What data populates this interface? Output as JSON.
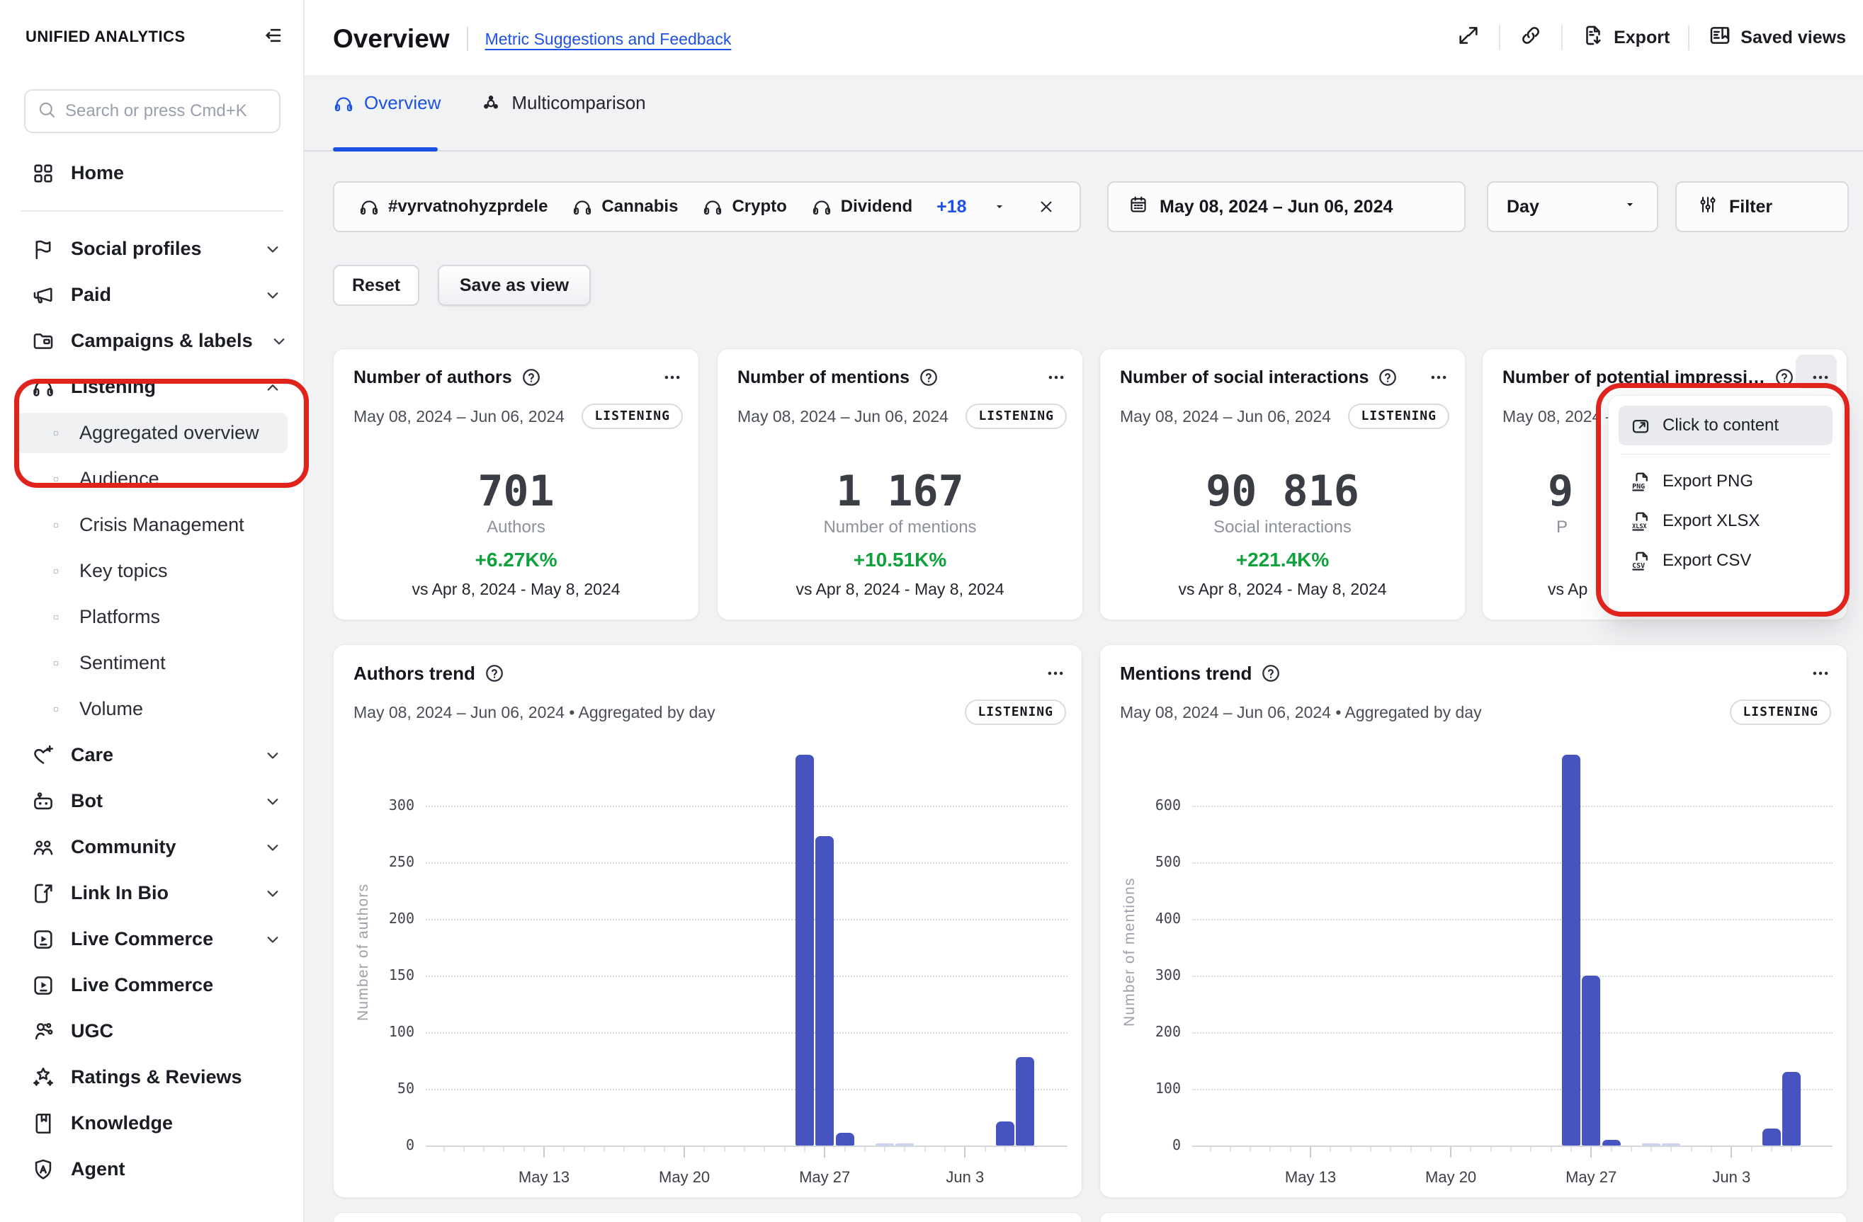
{
  "brand": {
    "name": "UNIFIED ANALYTICS"
  },
  "sidebar": {
    "search": {
      "placeholder": "Search or press Cmd+K"
    },
    "items": [
      {
        "label": "Home",
        "icon": "grid"
      },
      {
        "divider": true
      },
      {
        "label": "Social profiles",
        "icon": "flag",
        "chevron": "down"
      },
      {
        "label": "Paid",
        "icon": "megaphone",
        "chevron": "down"
      },
      {
        "label": "Campaigns & labels",
        "icon": "folder",
        "chevron": "down"
      },
      {
        "label": "Listening",
        "icon": "headphones",
        "chevron": "up"
      },
      {
        "label": "Aggregated overview",
        "child": true,
        "active": true
      },
      {
        "label": "Audience",
        "child": true
      },
      {
        "label": "Crisis Management",
        "child": true
      },
      {
        "label": "Key topics",
        "child": true
      },
      {
        "label": "Platforms",
        "child": true
      },
      {
        "label": "Sentiment",
        "child": true
      },
      {
        "label": "Volume",
        "child": true
      },
      {
        "label": "Care",
        "icon": "heart-plus",
        "chevron": "down"
      },
      {
        "label": "Bot",
        "icon": "bot",
        "chevron": "down"
      },
      {
        "label": "Community",
        "icon": "community",
        "chevron": "down"
      },
      {
        "label": "Link In Bio",
        "icon": "link-in-bio",
        "chevron": "down"
      },
      {
        "label": "Live Commerce",
        "icon": "play-square",
        "chevron": "down"
      },
      {
        "label": "Live Commerce",
        "icon": "play-square"
      },
      {
        "label": "UGC",
        "icon": "ugc"
      },
      {
        "label": "Ratings & Reviews",
        "icon": "stars"
      },
      {
        "label": "Knowledge",
        "icon": "book"
      },
      {
        "label": "Agent",
        "icon": "shield-a"
      }
    ]
  },
  "header": {
    "title": "Overview",
    "link": "Metric Suggestions and Feedback",
    "actions": {
      "export": "Export",
      "saved_views": "Saved views"
    }
  },
  "tabs": [
    {
      "label": "Overview",
      "icon": "headphones",
      "active": true
    },
    {
      "label": "Multicomparison",
      "icon": "multicomparison",
      "active": false
    }
  ],
  "controls": {
    "chips": [
      "#vyrvatnohyzprdele",
      "Cannabis",
      "Crypto",
      "Dividend"
    ],
    "more": "+18",
    "date_range": "May 08, 2024 – Jun 06, 2024",
    "granularity": "Day",
    "filter": "Filter",
    "reset": "Reset",
    "save_as_view": "Save as view"
  },
  "metric_cards": [
    {
      "title": "Number of authors",
      "date_range": "May 08, 2024 – Jun 06, 2024",
      "badge": "LISTENING",
      "value": "701",
      "value_label": "Authors",
      "delta": "+6.27K%",
      "vs": "vs Apr 8, 2024 - May 8, 2024"
    },
    {
      "title": "Number of mentions",
      "date_range": "May 08, 2024 – Jun 06, 2024",
      "badge": "LISTENING",
      "value": "1 167",
      "value_label": "Number of mentions",
      "delta": "+10.51K%",
      "vs": "vs Apr 8, 2024 - May 8, 2024"
    },
    {
      "title": "Number of social interactions",
      "date_range": "May 08, 2024 – Jun 06, 2024",
      "badge": "LISTENING",
      "value": "90 816",
      "value_label": "Social interactions",
      "delta": "+221.4K%",
      "vs": "vs Apr 8, 2024 - May 8, 2024"
    },
    {
      "title": "Number of potential impressi…",
      "date_range": "May 08, 2024 – Jun 06, 2024",
      "badge": "LISTENING",
      "value": "9",
      "value_label": "P",
      "delta": "",
      "vs": "vs Ap",
      "covered": true
    }
  ],
  "context_menu": {
    "items": [
      {
        "label": "Click to content",
        "icon": "open-content",
        "highlighted": true
      },
      {
        "label": "Export PNG",
        "icon": "file-png"
      },
      {
        "label": "Export XLSX",
        "icon": "file-xlsx"
      },
      {
        "label": "Export CSV",
        "icon": "file-csv"
      }
    ]
  },
  "chart_data": [
    {
      "type": "bar",
      "title": "Authors trend",
      "subtitle": "May 08, 2024 – Jun 06, 2024 • Aggregated by day",
      "badge": "LISTENING",
      "ylabel": "Number of authors",
      "yticks": [
        0,
        50,
        100,
        150,
        200,
        250,
        300
      ],
      "ylim": [
        0,
        350
      ],
      "x_range": [
        "May 08, 2024",
        "Jun 06, 2024"
      ],
      "grid": "dotted-horizontal",
      "legend": "none",
      "xticks": [
        {
          "label": "May 13",
          "day": 5
        },
        {
          "label": "May 20",
          "day": 12
        },
        {
          "label": "May 27",
          "day": 19
        },
        {
          "label": "Jun 3",
          "day": 26
        }
      ],
      "bars": [
        {
          "date": "May 26",
          "day": 18,
          "value": 345
        },
        {
          "date": "May 27",
          "day": 19,
          "value": 273
        },
        {
          "date": "May 28",
          "day": 20,
          "value": 11
        },
        {
          "date": "May 30",
          "day": 22,
          "value": 2,
          "muted": true
        },
        {
          "date": "May 31",
          "day": 23,
          "value": 1,
          "muted": true
        },
        {
          "date": "Jun 5",
          "day": 28,
          "value": 21
        },
        {
          "date": "Jun 6",
          "day": 29,
          "value": 78
        }
      ]
    },
    {
      "type": "bar",
      "title": "Mentions trend",
      "subtitle": "May 08, 2024 – Jun 06, 2024 • Aggregated by day",
      "badge": "LISTENING",
      "ylabel": "Number of mentions",
      "yticks": [
        0,
        100,
        200,
        300,
        400,
        500,
        600
      ],
      "ylim": [
        0,
        700
      ],
      "x_range": [
        "May 08, 2024",
        "Jun 06, 2024"
      ],
      "grid": "dotted-horizontal",
      "legend": "none",
      "xticks": [
        {
          "label": "May 13",
          "day": 5
        },
        {
          "label": "May 20",
          "day": 12
        },
        {
          "label": "May 27",
          "day": 19
        },
        {
          "label": "Jun 3",
          "day": 26
        }
      ],
      "bars": [
        {
          "date": "May 26",
          "day": 18,
          "value": 690
        },
        {
          "date": "May 27",
          "day": 19,
          "value": 300
        },
        {
          "date": "May 28",
          "day": 20,
          "value": 10
        },
        {
          "date": "May 30",
          "day": 22,
          "value": 3,
          "muted": true
        },
        {
          "date": "May 31",
          "day": 23,
          "value": 2,
          "muted": true
        },
        {
          "date": "Jun 5",
          "day": 28,
          "value": 30
        },
        {
          "date": "Jun 6",
          "day": 29,
          "value": 130
        }
      ]
    }
  ],
  "colors": {
    "accent_blue": "#1d51e6",
    "positive_green": "#0fa23c",
    "bar_indigo": "#4754c0",
    "bar_muted": "#ccd3ee",
    "annotation_red": "#e0231c",
    "background_gray": "#f1f2f4"
  }
}
